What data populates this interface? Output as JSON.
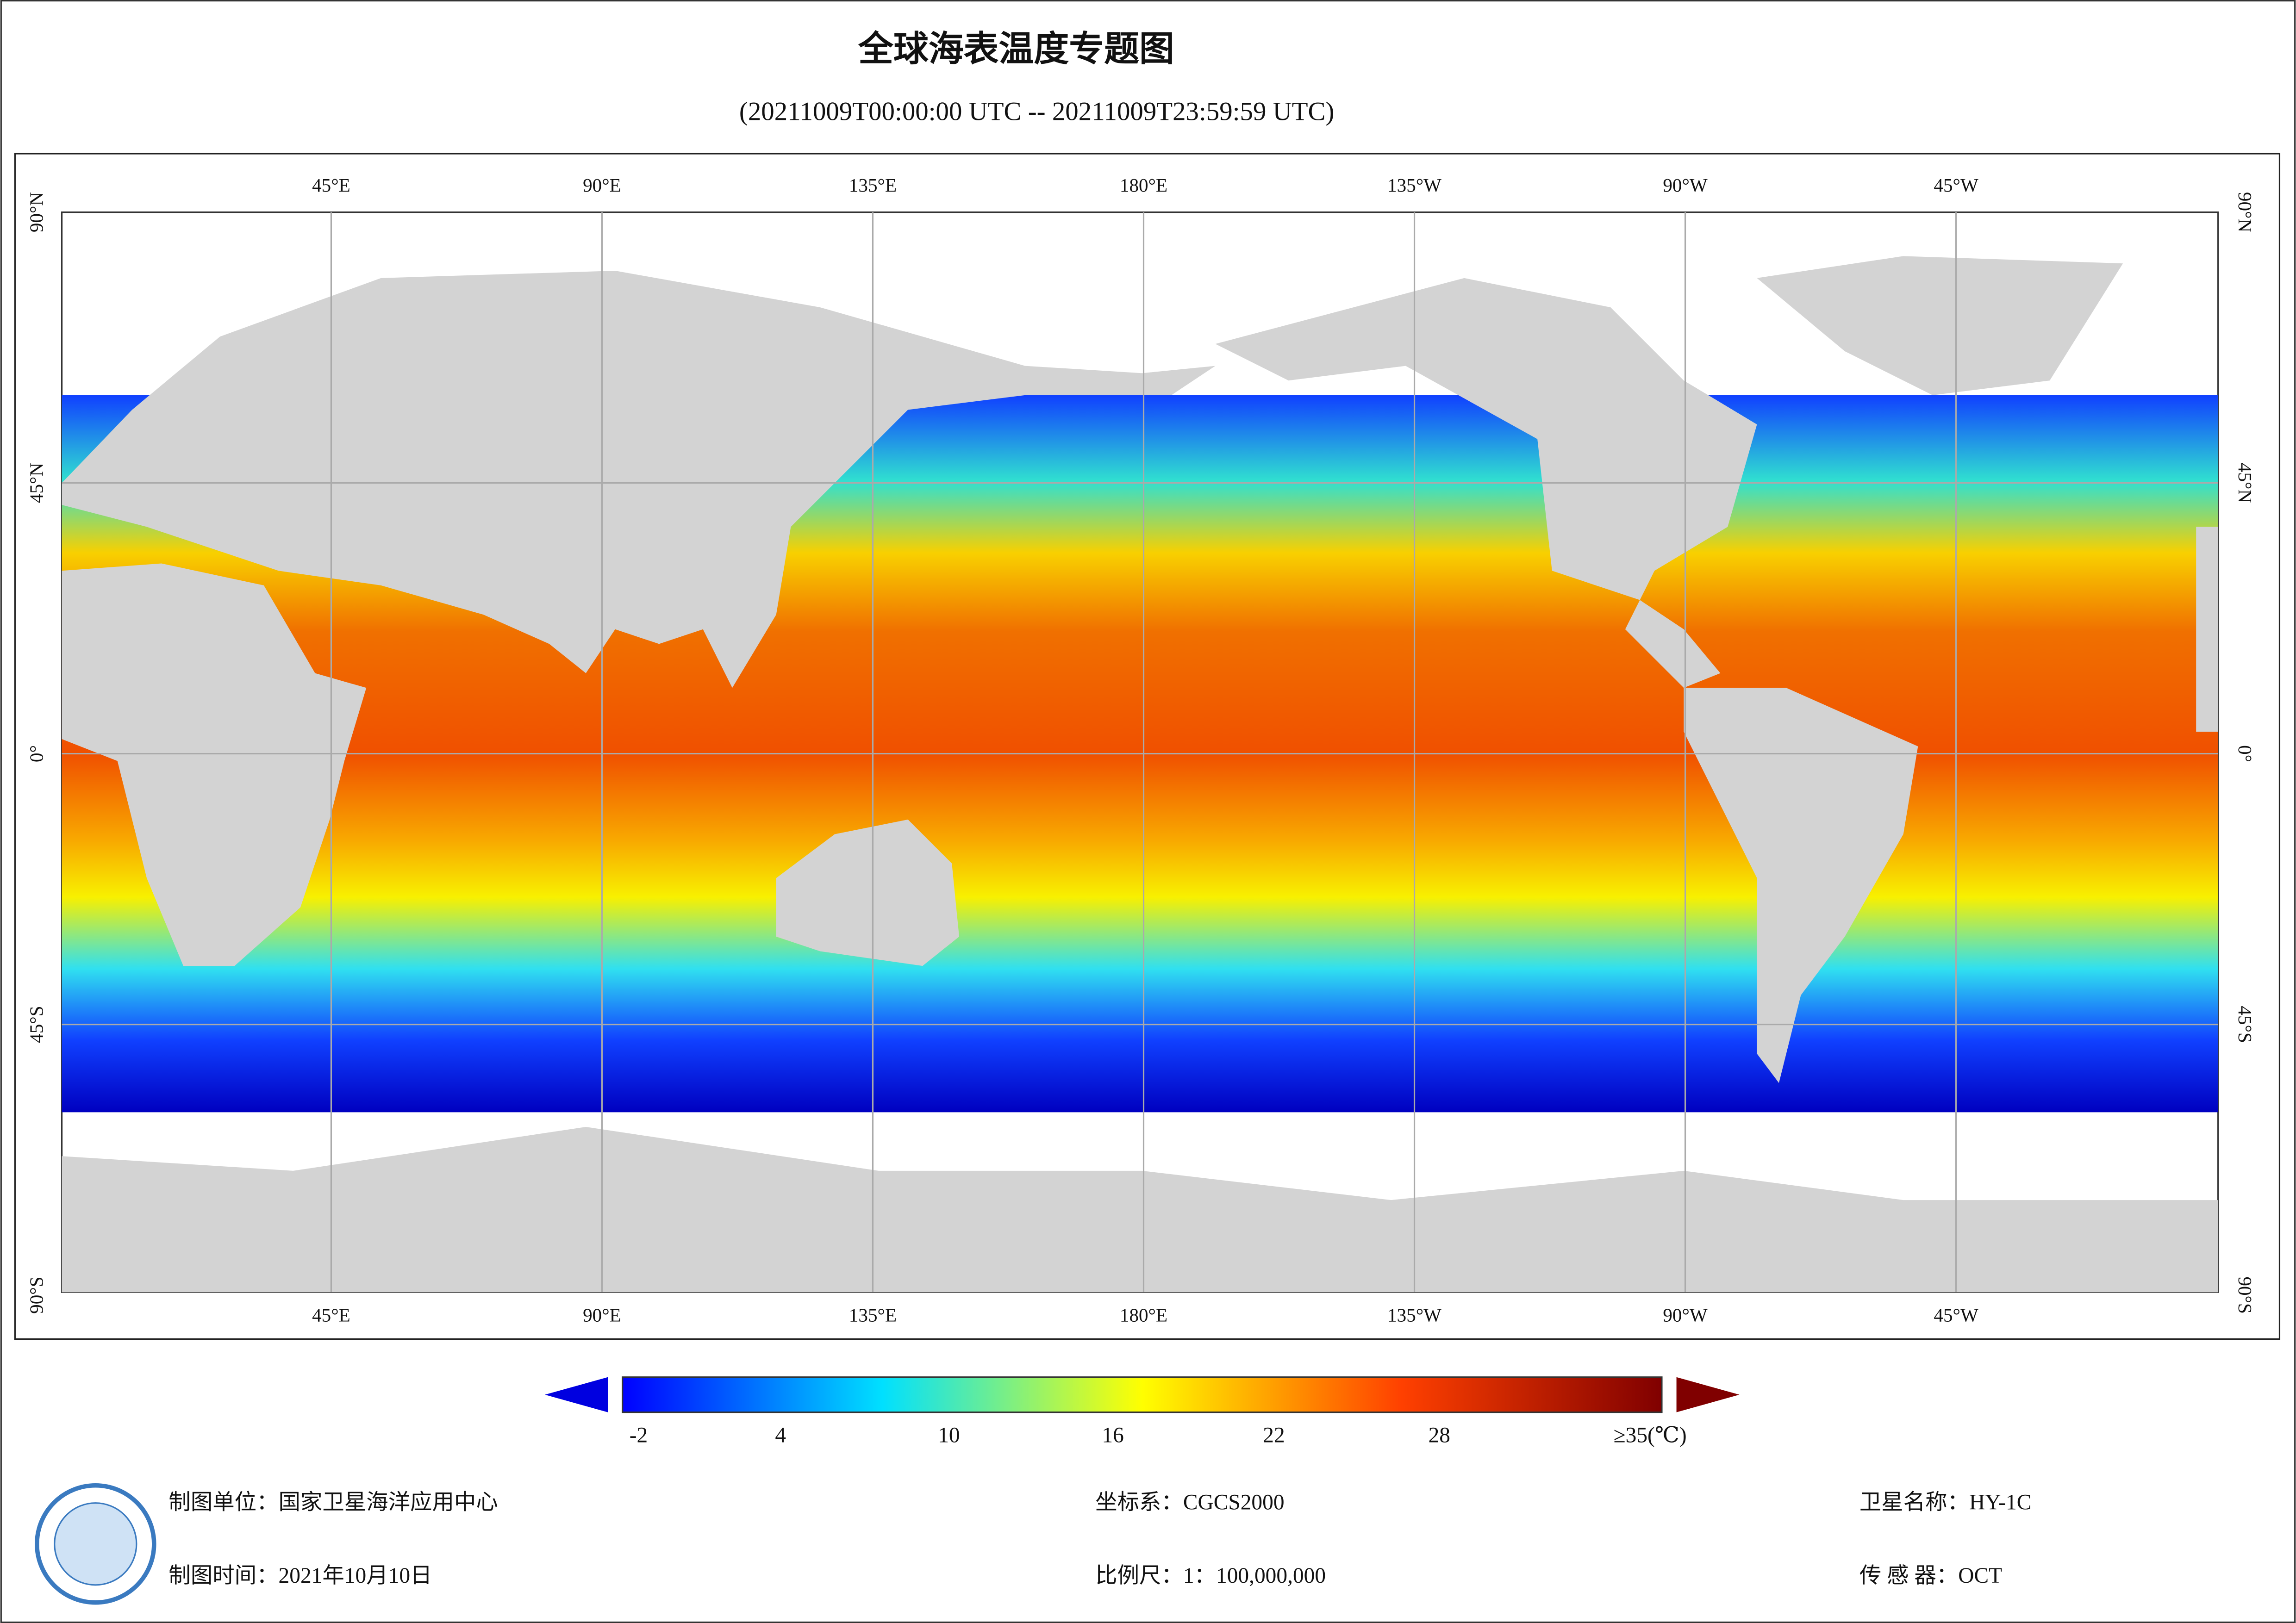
{
  "title": "全球海表温度专题图",
  "subtitle": "(20211009T00:00:00 UTC -- 20211009T23:59:59 UTC)",
  "map": {
    "lon_labels": [
      "45°E",
      "90°E",
      "135°E",
      "180°E",
      "135°W",
      "90°W",
      "45°W"
    ],
    "lat_labels": [
      "90°N",
      "45°N",
      "0°",
      "45°S",
      "90°S"
    ]
  },
  "colorbar": {
    "labels": [
      "-2",
      "4",
      "10",
      "16",
      "22",
      "28",
      "≥35(℃)"
    ]
  },
  "footer": {
    "unit": "制图单位：国家卫星海洋应用中心",
    "time": "制图时间：2021年10月10日",
    "crs": "坐标系：CGCS2000",
    "scale": "比例尺：1：100,000,000",
    "satellite": "卫星名称：HY-1C",
    "sensor": "传 感 器：OCT"
  }
}
